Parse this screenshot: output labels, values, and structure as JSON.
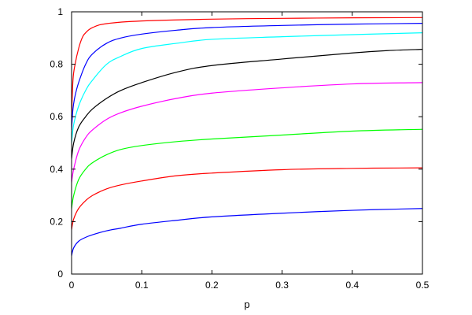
{
  "chart_data": {
    "type": "line",
    "title": "",
    "xlabel": "p",
    "ylabel": "",
    "xlim": [
      0,
      0.5
    ],
    "ylim": [
      0,
      1
    ],
    "x_ticks": [
      {
        "value": 0,
        "label": "0"
      },
      {
        "value": 0.1,
        "label": "0.1"
      },
      {
        "value": 0.2,
        "label": "0.2"
      },
      {
        "value": 0.3,
        "label": "0.3"
      },
      {
        "value": 0.4,
        "label": "0.4"
      },
      {
        "value": 0.5,
        "label": "0.5"
      }
    ],
    "y_ticks": [
      {
        "value": 0,
        "label": "0"
      },
      {
        "value": 0.2,
        "label": "0.2"
      },
      {
        "value": 0.4,
        "label": "0.4"
      },
      {
        "value": 0.6,
        "label": "0.6"
      },
      {
        "value": 0.8,
        "label": "0.8"
      },
      {
        "value": 1,
        "label": "1"
      }
    ],
    "grid": false,
    "legend": "none",
    "series": [
      {
        "color": "#ff0000",
        "x": [
          0,
          0.002,
          0.005,
          0.01,
          0.015,
          0.02,
          0.03,
          0.05,
          0.1,
          0.2,
          0.3,
          0.4,
          0.5
        ],
        "y": [
          0.6,
          0.74,
          0.8,
          0.86,
          0.9,
          0.92,
          0.94,
          0.955,
          0.965,
          0.972,
          0.975,
          0.977,
          0.978
        ]
      },
      {
        "color": "#0000ff",
        "x": [
          0,
          0.002,
          0.005,
          0.01,
          0.02,
          0.03,
          0.05,
          0.07,
          0.1,
          0.15,
          0.2,
          0.3,
          0.4,
          0.5
        ],
        "y": [
          0.55,
          0.63,
          0.68,
          0.73,
          0.8,
          0.84,
          0.88,
          0.9,
          0.915,
          0.93,
          0.94,
          0.948,
          0.953,
          0.956
        ]
      },
      {
        "color": "#00ffff",
        "x": [
          0,
          0.003,
          0.01,
          0.02,
          0.03,
          0.05,
          0.07,
          0.1,
          0.15,
          0.2,
          0.3,
          0.4,
          0.5
        ],
        "y": [
          0.5,
          0.57,
          0.64,
          0.7,
          0.74,
          0.8,
          0.83,
          0.86,
          0.88,
          0.895,
          0.905,
          0.913,
          0.92
        ]
      },
      {
        "color": "#000000",
        "x": [
          0,
          0.003,
          0.01,
          0.02,
          0.03,
          0.05,
          0.07,
          0.1,
          0.15,
          0.2,
          0.3,
          0.4,
          0.45,
          0.5
        ],
        "y": [
          0.44,
          0.5,
          0.56,
          0.6,
          0.63,
          0.67,
          0.7,
          0.73,
          0.77,
          0.795,
          0.82,
          0.843,
          0.852,
          0.857
        ]
      },
      {
        "color": "#ff00ff",
        "x": [
          0,
          0.003,
          0.01,
          0.02,
          0.03,
          0.05,
          0.07,
          0.1,
          0.15,
          0.2,
          0.3,
          0.4,
          0.5
        ],
        "y": [
          0.35,
          0.4,
          0.47,
          0.52,
          0.55,
          0.59,
          0.615,
          0.64,
          0.67,
          0.69,
          0.71,
          0.725,
          0.73
        ]
      },
      {
        "color": "#00ff00",
        "x": [
          0,
          0.003,
          0.01,
          0.02,
          0.03,
          0.05,
          0.07,
          0.1,
          0.15,
          0.2,
          0.3,
          0.4,
          0.5
        ],
        "y": [
          0.25,
          0.3,
          0.36,
          0.4,
          0.425,
          0.455,
          0.475,
          0.49,
          0.505,
          0.515,
          0.53,
          0.545,
          0.552
        ]
      },
      {
        "color": "#ff0000",
        "x": [
          0,
          0.003,
          0.01,
          0.02,
          0.03,
          0.05,
          0.07,
          0.1,
          0.15,
          0.2,
          0.3,
          0.4,
          0.5
        ],
        "y": [
          0.17,
          0.21,
          0.25,
          0.28,
          0.3,
          0.325,
          0.34,
          0.355,
          0.375,
          0.385,
          0.398,
          0.403,
          0.405
        ]
      },
      {
        "color": "#0000ff",
        "x": [
          0,
          0.003,
          0.01,
          0.02,
          0.03,
          0.05,
          0.07,
          0.1,
          0.15,
          0.2,
          0.3,
          0.4,
          0.5
        ],
        "y": [
          0.07,
          0.1,
          0.125,
          0.14,
          0.15,
          0.165,
          0.175,
          0.19,
          0.205,
          0.218,
          0.232,
          0.243,
          0.25
        ]
      }
    ]
  }
}
